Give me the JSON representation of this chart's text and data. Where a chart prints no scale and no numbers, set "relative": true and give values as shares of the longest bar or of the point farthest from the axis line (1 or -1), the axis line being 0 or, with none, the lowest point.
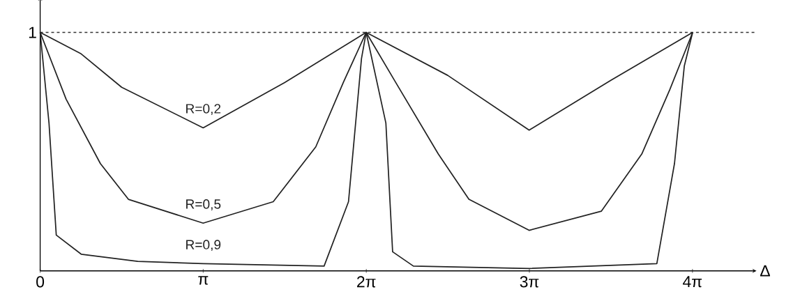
{
  "chart_data": {
    "type": "line",
    "relative": true,
    "xlabel": "Δ",
    "xlim": [
      0,
      13.8
    ],
    "xticks": [
      0,
      {
        "value": 3.1416,
        "label": "π"
      },
      {
        "value": 6.2832,
        "label": "2π"
      },
      {
        "value": 9.4248,
        "label": "3π"
      },
      {
        "value": 12.5664,
        "label": "4π"
      }
    ],
    "series": [
      {
        "name": "R=0,2",
        "color": "#222222",
        "x": [
          0,
          0.79,
          1.57,
          3.14,
          4.71,
          6.28,
          7.85,
          9.42,
          11.0,
          12.57
        ],
        "values": [
          1,
          0.91,
          0.77,
          0.6,
          0.79,
          1,
          0.82,
          0.59,
          0.8,
          1
        ]
      },
      {
        "name": "R=0,5",
        "color": "#222222",
        "x": [
          0,
          0.5,
          1.16,
          1.7,
          3.14,
          4.49,
          5.31,
          5.84,
          6.28,
          6.85,
          7.67,
          8.26,
          9.42,
          10.81,
          11.59,
          12.13,
          12.57
        ],
        "values": [
          1,
          0.72,
          0.45,
          0.3,
          0.2,
          0.29,
          0.52,
          0.79,
          1,
          0.79,
          0.49,
          0.3,
          0.17,
          0.25,
          0.49,
          0.76,
          1
        ]
      },
      {
        "name": "R=0,9",
        "color": "#222222",
        "x": [
          0,
          0.17,
          0.31,
          0.79,
          1.88,
          3.14,
          5.47,
          5.94,
          6.19,
          6.28,
          6.66,
          6.79,
          7.19,
          9.42,
          11.88,
          12.22,
          12.41,
          12.57
        ],
        "values": [
          1,
          0.62,
          0.15,
          0.07,
          0.04,
          0.03,
          0.02,
          0.29,
          0.89,
          1,
          0.62,
          0.08,
          0.02,
          0.01,
          0.03,
          0.45,
          0.86,
          1
        ]
      }
    ],
    "ref_lines": [
      {
        "axis": "y",
        "value": 1,
        "label": "1",
        "line_style": "dashed"
      }
    ]
  }
}
